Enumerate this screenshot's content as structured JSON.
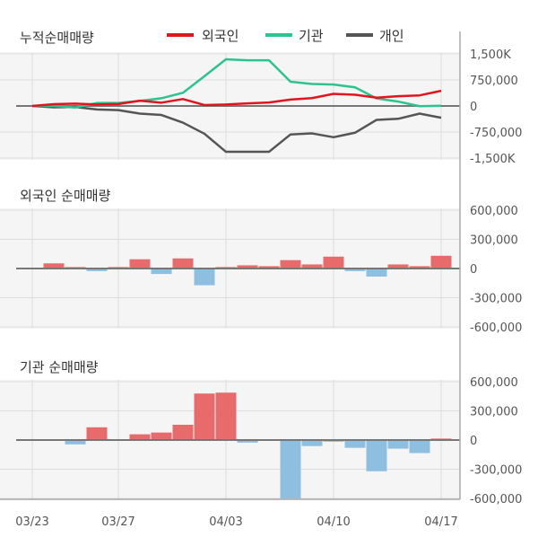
{
  "colors": {
    "foreign": "#e0151d",
    "institution": "#2ec28e",
    "individual": "#555555",
    "bar_positive": "#e86b6b",
    "bar_negative": "#8fbfe0",
    "plot_bg": "#f5f5f5",
    "grid": "#dddddd"
  },
  "x_labels": [
    "03/23",
    "03/27",
    "04/03",
    "04/10",
    "04/17"
  ],
  "chart_data": [
    {
      "type": "line",
      "title": "누적순매매량",
      "legend_position": "top",
      "x": [
        "03/23",
        "03/24",
        "03/25",
        "03/26",
        "03/27",
        "03/30",
        "03/31",
        "04/01",
        "04/02",
        "04/03",
        "04/06",
        "04/07",
        "04/08",
        "04/09",
        "04/10",
        "04/13",
        "04/14",
        "04/15",
        "04/16",
        "04/17"
      ],
      "ylim": [
        -1500000,
        1500000
      ],
      "yticks": [
        1500000,
        750000,
        0,
        -750000,
        -1500000
      ],
      "ytick_labels": [
        "1,500K",
        "750,000",
        "0",
        "-750,000",
        "-1,500K"
      ],
      "series": [
        {
          "name": "외국인",
          "values": [
            0,
            53000,
            68000,
            41000,
            56000,
            151000,
            95000,
            199000,
            27000,
            42000,
            75000,
            99000,
            185000,
            227000,
            349000,
            322000,
            239000,
            281000,
            305000,
            436000
          ]
        },
        {
          "name": "기관",
          "values": [
            0,
            0,
            -45000,
            86000,
            86000,
            145000,
            222000,
            379000,
            857000,
            1344000,
            1317000,
            1317000,
            697000,
            635000,
            617000,
            537000,
            216000,
            127000,
            -7000,
            8000
          ]
        },
        {
          "name": "개인",
          "values": [
            0,
            -40000,
            -30000,
            -100000,
            -120000,
            -220000,
            -260000,
            -480000,
            -800000,
            -1320000,
            -1320000,
            -1320000,
            -820000,
            -790000,
            -900000,
            -770000,
            -400000,
            -370000,
            -220000,
            -340000
          ]
        }
      ]
    },
    {
      "type": "bar",
      "title": "외국인 순매매량",
      "x": [
        "03/23",
        "03/24",
        "03/25",
        "03/26",
        "03/27",
        "03/30",
        "03/31",
        "04/01",
        "04/02",
        "04/03",
        "04/06",
        "04/07",
        "04/08",
        "04/09",
        "04/10",
        "04/13",
        "04/14",
        "04/15",
        "04/16",
        "04/17"
      ],
      "ylim": [
        -600000,
        600000
      ],
      "yticks": [
        600000,
        300000,
        0,
        -300000,
        -600000
      ],
      "ytick_labels": [
        "600,000",
        "300,000",
        "0",
        "-300,000",
        "-600,000"
      ],
      "values": [
        0,
        53000,
        15000,
        -27000,
        15000,
        95000,
        -56000,
        104000,
        -172000,
        15000,
        33000,
        24000,
        86000,
        42000,
        122000,
        -27000,
        -83000,
        42000,
        24000,
        131000
      ]
    },
    {
      "type": "bar",
      "title": "기관 순매매량",
      "x": [
        "03/23",
        "03/24",
        "03/25",
        "03/26",
        "03/27",
        "03/30",
        "03/31",
        "04/01",
        "04/02",
        "04/03",
        "04/06",
        "04/07",
        "04/08",
        "04/09",
        "04/10",
        "04/13",
        "04/14",
        "04/15",
        "04/16",
        "04/17"
      ],
      "ylim": [
        -600000,
        600000
      ],
      "yticks": [
        600000,
        300000,
        0,
        -300000,
        -600000
      ],
      "ytick_labels": [
        "600,000",
        "300,000",
        "0",
        "-300,000",
        "-600,000"
      ],
      "values": [
        0,
        0,
        -45000,
        131000,
        0,
        59000,
        77000,
        157000,
        478000,
        487000,
        -27000,
        0,
        -620000,
        -62000,
        -18000,
        -80000,
        -321000,
        -89000,
        -134000,
        15000
      ]
    }
  ]
}
